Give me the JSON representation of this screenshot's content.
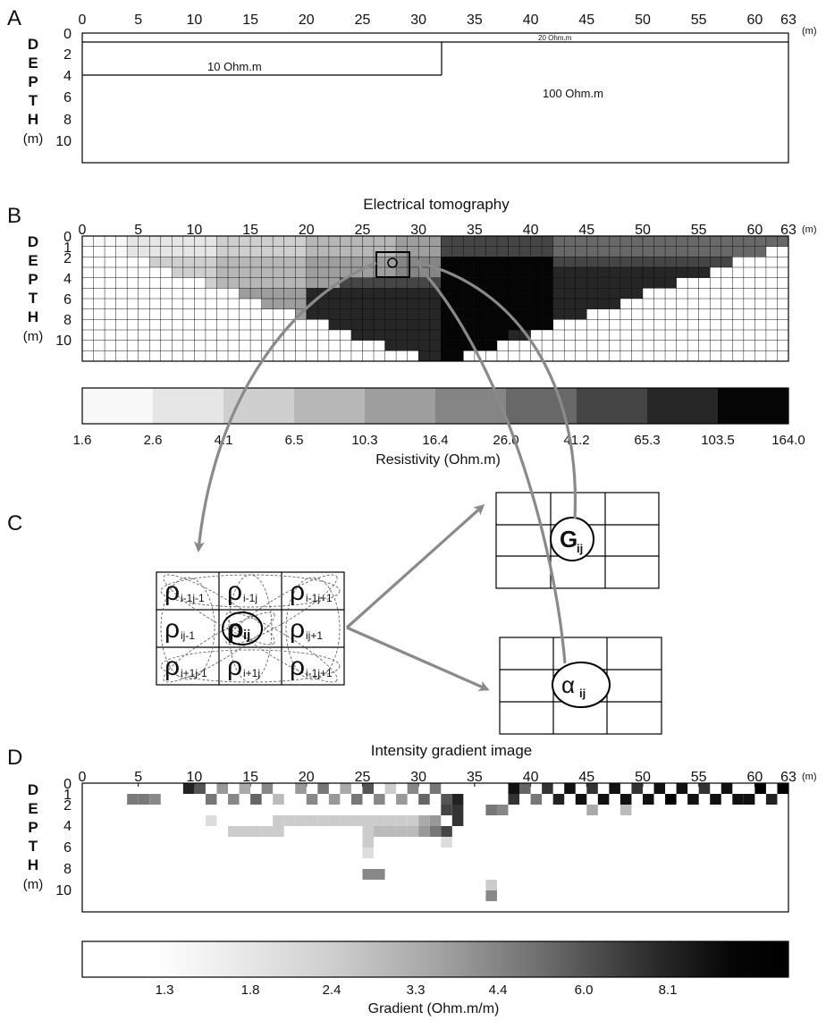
{
  "panels": {
    "a": {
      "letter": "A",
      "x_ticks": [
        "0",
        "5",
        "10",
        "15",
        "20",
        "25",
        "30",
        "35",
        "40",
        "45",
        "50",
        "55",
        "60",
        "63"
      ],
      "x_unit": "(m)",
      "y_ticks": [
        "0",
        "2",
        "4",
        "6",
        "8",
        "10"
      ],
      "depth_letters": [
        "D",
        "E",
        "P",
        "T",
        "H"
      ],
      "depth_unit": "(m)",
      "layers": {
        "top": "20 Ohm.m",
        "left": "10 Ohm.m",
        "right": "100 Ohm.m"
      }
    },
    "b": {
      "letter": "B",
      "title": "Electrical tomography",
      "x_ticks": [
        "0",
        "5",
        "10",
        "15",
        "20",
        "25",
        "30",
        "35",
        "40",
        "45",
        "50",
        "55",
        "60",
        "63"
      ],
      "x_unit": "(m)",
      "y_ticks": [
        "0",
        "1",
        "2",
        "4",
        "6",
        "8",
        "10"
      ],
      "depth_letters": [
        "D",
        "E",
        "P",
        "T",
        "H"
      ],
      "depth_unit": "(m)",
      "colorbar": {
        "labels": [
          "1.6",
          "2.6",
          "4.1",
          "6.5",
          "10.3",
          "16.4",
          "26.0",
          "41.2",
          "65.3",
          "103.5",
          "164.0"
        ],
        "title": "Resistivity (Ohm.m)",
        "colors": [
          "#ffffff",
          "#f8f8f8",
          "#e6e6e6",
          "#cfcfcf",
          "#b7b7b7",
          "#9e9e9e",
          "#858585",
          "#686868",
          "#454545",
          "#262626",
          "#050505"
        ]
      }
    },
    "c": {
      "letter": "C",
      "stencil": [
        {
          "base": "ρ",
          "sub": "i-1j-1"
        },
        {
          "base": "ρ",
          "sub": "i-1j"
        },
        {
          "base": "ρ",
          "sub": "i-1j+1"
        },
        {
          "base": "ρ",
          "sub": "ij-1"
        },
        {
          "base": "ρ",
          "sub": "ij"
        },
        {
          "base": "ρ",
          "sub": "ij+1"
        },
        {
          "base": "ρ",
          "sub": "i+1j-1"
        },
        {
          "base": "ρ",
          "sub": "i+1j"
        },
        {
          "base": "ρ",
          "sub": "i-1j+1"
        }
      ],
      "gradient_cell": {
        "base": "G",
        "sub": "ij"
      },
      "angle_cell": {
        "base": "α",
        "sub": "ij"
      }
    },
    "d": {
      "letter": "D",
      "title": "Intensity gradient image",
      "x_ticks": [
        "0",
        "5",
        "10",
        "15",
        "20",
        "25",
        "30",
        "35",
        "40",
        "45",
        "50",
        "55",
        "60",
        "63"
      ],
      "x_unit": "(m)",
      "y_ticks": [
        "0",
        "1",
        "2",
        "4",
        "6",
        "8",
        "10"
      ],
      "depth_letters": [
        "D",
        "E",
        "P",
        "T",
        "H"
      ],
      "depth_unit": "(m)",
      "colorbar": {
        "labels": [
          "1.3",
          "1.8",
          "2.4",
          "3.3",
          "4.4",
          "6.0",
          "8.1"
        ],
        "title": "Gradient (Ohm.m/m)"
      }
    }
  },
  "colors": {
    "arrow": "#8a8a8a",
    "frame": "#000000",
    "stencil_dash": "#666666"
  }
}
